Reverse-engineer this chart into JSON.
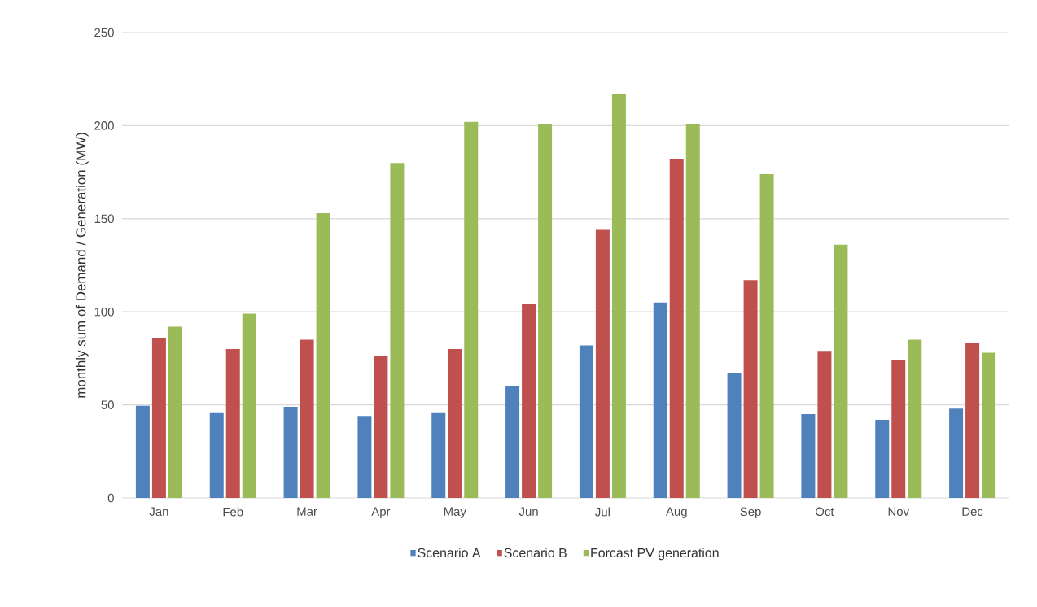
{
  "chart_data": {
    "type": "bar",
    "ylabel": "monthly sum of Demand / Generation (MW)",
    "categories": [
      "Jan",
      "Feb",
      "Mar",
      "Apr",
      "May",
      "Jun",
      "Jul",
      "Aug",
      "Sep",
      "Oct",
      "Nov",
      "Dec"
    ],
    "series": [
      {
        "name": "Scenario A",
        "color": "#4f81bd",
        "values": [
          49.5,
          46,
          49,
          44,
          46,
          60,
          82,
          105,
          67,
          45,
          42,
          48
        ]
      },
      {
        "name": "Scenario B",
        "color": "#c0504d",
        "values": [
          86,
          80,
          85,
          76,
          80,
          104,
          144,
          182,
          117,
          79,
          74,
          83
        ]
      },
      {
        "name": "Forcast PV generation",
        "color": "#9bbb59",
        "values": [
          92,
          99,
          153,
          180,
          202,
          201,
          217,
          201,
          174,
          136,
          85,
          78
        ]
      }
    ],
    "ylim": [
      0,
      250
    ],
    "yticks": [
      0,
      50,
      100,
      150,
      200,
      250
    ],
    "grid": "y",
    "legend": "bottom"
  }
}
